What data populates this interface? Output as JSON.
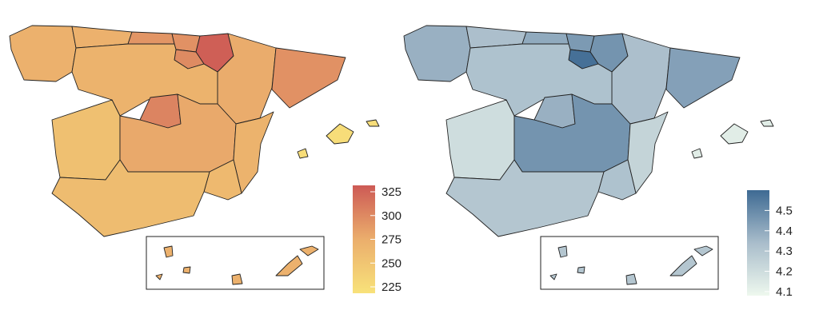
{
  "maps": [
    {
      "id": "left",
      "scale": {
        "min": 225,
        "max": 325,
        "colors": [
          "#f8e27a",
          "#ebae6c",
          "#cd5a55"
        ],
        "ticks": [
          "325",
          "300",
          "275",
          "250",
          "225"
        ],
        "tick_values": [
          325,
          300,
          275,
          250,
          225
        ]
      },
      "values": {
        "galicia": 272,
        "asturias": 272,
        "cantabria": 290,
        "basque": 292,
        "navarra": 322,
        "rioja": 296,
        "aragon": 276,
        "catalonia": 292,
        "castilla_leon": 270,
        "madrid": 300,
        "extremadura": 258,
        "castilla_mancha": 278,
        "valencia": 270,
        "murcia": 264,
        "andalusia": 262,
        "balearics": 230,
        "canary": 272
      }
    },
    {
      "id": "right",
      "scale": {
        "min": 4.08,
        "max": 4.6,
        "colors": [
          "#eef8ee",
          "#a9bdcb",
          "#3e6a93"
        ],
        "ticks": [
          "4.5",
          "4.4",
          "4.3",
          "4.2",
          "4.1"
        ],
        "tick_values": [
          4.5,
          4.4,
          4.3,
          4.2,
          4.1
        ]
      },
      "values": {
        "galicia": 4.38,
        "asturias": 4.33,
        "cantabria": 4.4,
        "basque": 4.45,
        "navarra": 4.47,
        "rioja": 4.58,
        "aragon": 4.33,
        "catalonia": 4.43,
        "castilla_leon": 4.32,
        "madrid": 4.38,
        "extremadura": 4.2,
        "castilla_mancha": 4.47,
        "valencia": 4.24,
        "murcia": 4.32,
        "andalusia": 4.3,
        "balearics": 4.13,
        "canary": 4.3
      }
    }
  ]
}
